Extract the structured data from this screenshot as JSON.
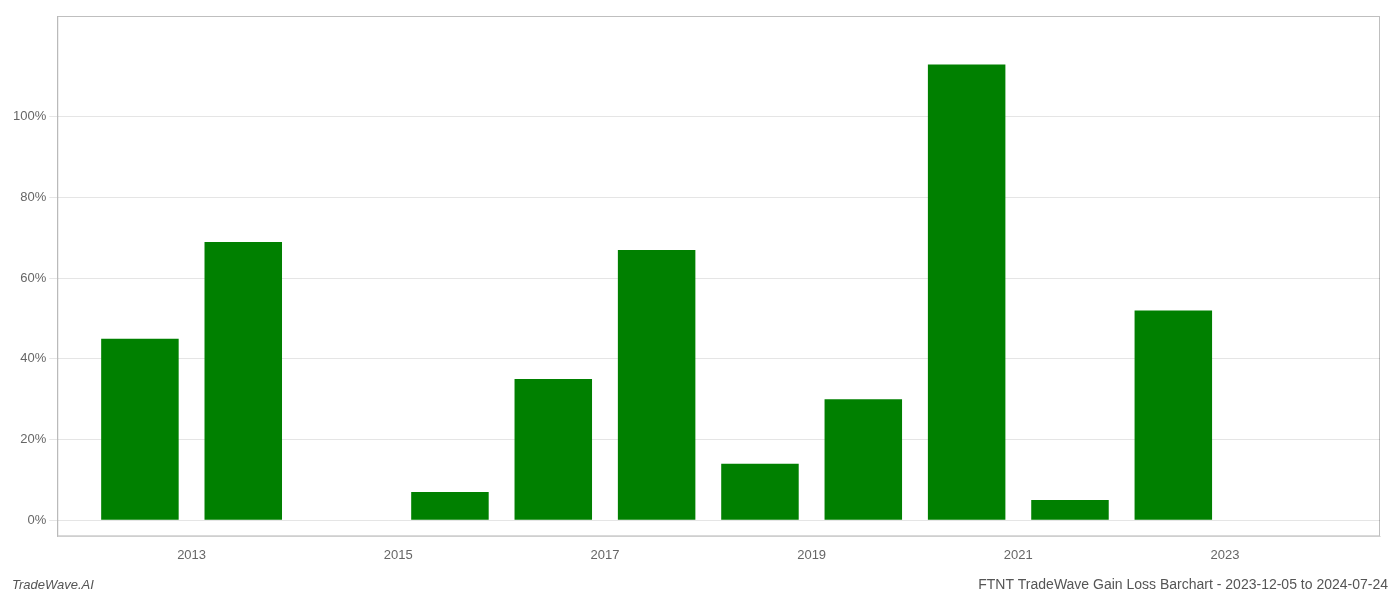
{
  "chart_data": {
    "type": "bar",
    "title": "FTNT TradeWave Gain Loss Barchart - 2023-12-05 to 2024-07-24",
    "annotations": [
      "TradeWave.AI"
    ],
    "x": [
      2012,
      2013,
      2015,
      2016,
      2017,
      2018,
      2019,
      2020,
      2021,
      2022
    ],
    "values": [
      45,
      69,
      7,
      35,
      67,
      14,
      30,
      113,
      5,
      52
    ],
    "color": "#008000",
    "xlim": [
      2011.2,
      2024.0
    ],
    "xticks": [
      {
        "value": 2012.5,
        "label": "2013"
      },
      {
        "value": 2014.5,
        "label": "2015"
      },
      {
        "value": 2016.5,
        "label": "2017"
      },
      {
        "value": 2018.5,
        "label": "2019"
      },
      {
        "value": 2020.5,
        "label": "2021"
      },
      {
        "value": 2022.5,
        "label": "2023"
      }
    ],
    "ylim": [
      -4,
      125
    ],
    "yticks": [
      {
        "value": 0,
        "label": "0%"
      },
      {
        "value": 20,
        "label": "20%"
      },
      {
        "value": 40,
        "label": "40%"
      },
      {
        "value": 60,
        "label": "60%"
      },
      {
        "value": 80,
        "label": "80%"
      },
      {
        "value": 100,
        "label": "100%"
      }
    ],
    "grid": "y"
  }
}
